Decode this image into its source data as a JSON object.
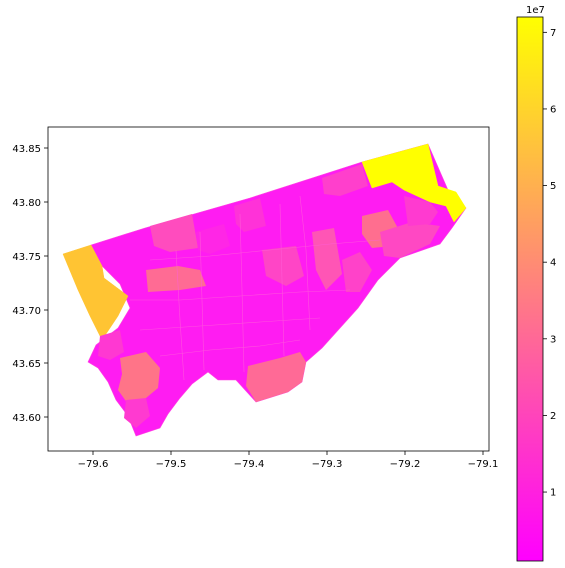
{
  "map": {
    "type": "choropleth",
    "x_ticks": [
      "−79.6",
      "−79.5",
      "−79.4",
      "−79.3",
      "−79.2",
      "−79.1"
    ],
    "y_ticks": [
      "43.85",
      "43.80",
      "43.75",
      "43.70",
      "43.65",
      "43.60"
    ],
    "xlim": [
      -79.665,
      -79.095
    ],
    "ylim": [
      43.565,
      43.868
    ],
    "colormap": "spring",
    "colormap_stops": [
      "#ff00ff",
      "#ff55aa",
      "#ffaa55",
      "#ffff00"
    ],
    "colorbar": {
      "range": [
        1000000,
        72000000
      ],
      "ticks": [
        "1",
        "2",
        "3",
        "4",
        "5",
        "6",
        "7"
      ],
      "tick_values": [
        1,
        2,
        3,
        4,
        5,
        6,
        7
      ],
      "offset_label": "1e7"
    },
    "region_colors": {
      "main_fill": "#ff1cf2",
      "highlight_yellow": "#ffff00",
      "highlight_gold": "#ffc433",
      "highlight_salmon": "#ff7488",
      "highlight_pink": "#ff56b3",
      "highlight_magenta": "#ff35d4"
    }
  }
}
